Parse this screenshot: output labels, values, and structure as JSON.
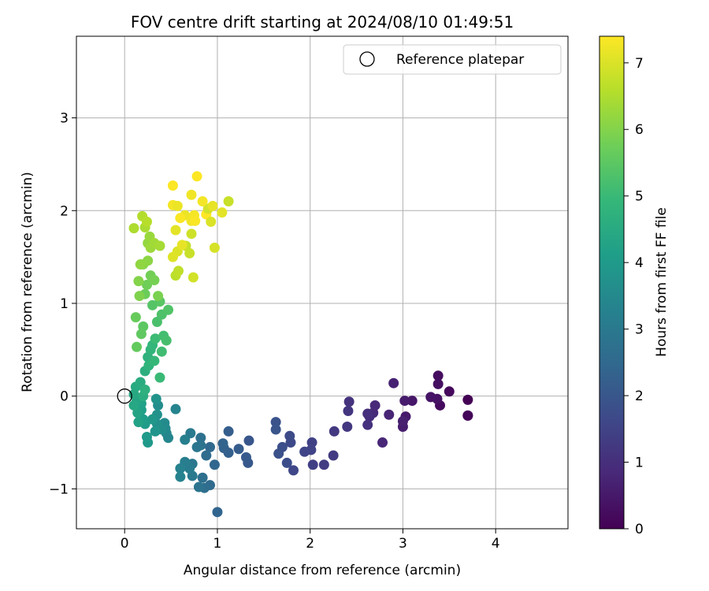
{
  "chart_data": {
    "type": "scatter",
    "title": "FOV centre drift starting at 2024/08/10 01:49:51",
    "xlabel": "Angular distance from reference (arcmin)",
    "ylabel": "Rotation from reference (arcmin)",
    "xlim": [
      -0.52,
      4.78
    ],
    "ylim": [
      -1.43,
      3.88
    ],
    "xticks": [
      0,
      1,
      2,
      3,
      4
    ],
    "yticks": [
      -1,
      0,
      1,
      2,
      3
    ],
    "grid": true,
    "legend": {
      "placement": "top-right",
      "entries": [
        "Reference platepar"
      ]
    },
    "reference_point": {
      "x": 0,
      "y": 0
    },
    "colorbar": {
      "label": "Hours from first FF file",
      "colormap": "viridis",
      "range": [
        0,
        7.4
      ],
      "ticks": [
        0,
        1,
        2,
        3,
        4,
        5,
        6,
        7
      ]
    },
    "points": [
      [
        3.7,
        -0.04,
        0.0
      ],
      [
        3.7,
        -0.21,
        0.05
      ],
      [
        3.7,
        -0.21,
        0.1
      ],
      [
        3.5,
        0.05,
        0.15
      ],
      [
        3.4,
        -0.1,
        0.2
      ],
      [
        3.38,
        0.22,
        0.25
      ],
      [
        3.38,
        0.13,
        0.3
      ],
      [
        3.37,
        -0.03,
        0.35
      ],
      [
        3.3,
        -0.01,
        0.4
      ],
      [
        3.1,
        -0.05,
        0.45
      ],
      [
        3.03,
        -0.22,
        0.5
      ],
      [
        3.02,
        -0.05,
        0.55
      ],
      [
        3.0,
        -0.33,
        0.6
      ],
      [
        3.0,
        -0.27,
        0.65
      ],
      [
        2.9,
        0.14,
        0.7
      ],
      [
        2.85,
        -0.2,
        0.75
      ],
      [
        2.78,
        -0.5,
        0.8
      ],
      [
        2.7,
        -0.1,
        0.85
      ],
      [
        2.68,
        -0.18,
        0.9
      ],
      [
        2.64,
        -0.22,
        0.95
      ],
      [
        2.62,
        -0.19,
        1.0
      ],
      [
        2.62,
        -0.31,
        1.05
      ],
      [
        2.42,
        -0.06,
        1.1
      ],
      [
        2.41,
        -0.16,
        1.15
      ],
      [
        2.4,
        -0.33,
        1.2
      ],
      [
        2.26,
        -0.38,
        1.25
      ],
      [
        2.25,
        -0.64,
        1.3
      ],
      [
        2.15,
        -0.74,
        1.35
      ],
      [
        2.03,
        -0.74,
        1.4
      ],
      [
        2.02,
        -0.5,
        1.45
      ],
      [
        2.01,
        -0.58,
        1.5
      ],
      [
        1.94,
        -0.6,
        1.55
      ],
      [
        1.82,
        -0.8,
        1.6
      ],
      [
        1.79,
        -0.5,
        1.65
      ],
      [
        1.78,
        -0.43,
        1.7
      ],
      [
        1.75,
        -0.72,
        1.75
      ],
      [
        1.7,
        -0.55,
        1.8
      ],
      [
        1.66,
        -0.62,
        1.85
      ],
      [
        1.63,
        -0.28,
        1.9
      ],
      [
        1.63,
        -0.36,
        1.95
      ],
      [
        1.34,
        -0.48,
        2.0
      ],
      [
        1.33,
        -0.72,
        2.05
      ],
      [
        1.31,
        -0.66,
        2.1
      ],
      [
        1.23,
        -0.57,
        2.15
      ],
      [
        1.12,
        -0.38,
        2.2
      ],
      [
        1.12,
        -0.61,
        2.25
      ],
      [
        1.07,
        -0.56,
        2.3
      ],
      [
        1.06,
        -0.51,
        2.35
      ],
      [
        1.0,
        -1.25,
        2.4
      ],
      [
        0.97,
        -0.74,
        2.45
      ],
      [
        0.92,
        -0.55,
        2.5
      ],
      [
        0.92,
        -0.96,
        2.55
      ],
      [
        0.88,
        -0.64,
        2.6
      ],
      [
        0.86,
        -0.99,
        2.65
      ],
      [
        0.84,
        -0.88,
        2.7
      ],
      [
        0.82,
        -0.45,
        2.75
      ],
      [
        0.82,
        -0.53,
        2.8
      ],
      [
        0.8,
        -0.98,
        2.85
      ],
      [
        0.78,
        -0.55,
        2.9
      ],
      [
        0.73,
        -0.73,
        2.95
      ],
      [
        0.73,
        -0.86,
        3.0
      ],
      [
        0.71,
        -0.4,
        3.05
      ],
      [
        0.7,
        -0.78,
        3.1
      ],
      [
        0.65,
        -0.71,
        3.15
      ],
      [
        0.65,
        -0.47,
        3.2
      ],
      [
        0.6,
        -0.78,
        3.25
      ],
      [
        0.6,
        -0.87,
        3.3
      ],
      [
        0.55,
        -0.14,
        3.35
      ],
      [
        0.47,
        -0.45,
        3.4
      ],
      [
        0.45,
        -0.4,
        3.45
      ],
      [
        0.44,
        -0.35,
        3.5
      ],
      [
        0.43,
        -0.29,
        3.55
      ],
      [
        0.4,
        -0.36,
        3.6
      ],
      [
        0.36,
        -0.1,
        3.65
      ],
      [
        0.35,
        -0.3,
        3.7
      ],
      [
        0.35,
        -0.2,
        3.75
      ],
      [
        0.34,
        -0.03,
        3.8
      ],
      [
        0.33,
        -0.38,
        3.85
      ],
      [
        0.3,
        -0.25,
        3.9
      ],
      [
        0.25,
        -0.5,
        3.95
      ],
      [
        0.24,
        -0.44,
        4.0
      ],
      [
        0.22,
        -0.3,
        4.05
      ],
      [
        0.2,
        -0.25,
        4.1
      ],
      [
        0.18,
        -0.15,
        4.15
      ],
      [
        0.18,
        -0.08,
        4.2
      ],
      [
        0.15,
        -0.28,
        4.25
      ],
      [
        0.14,
        -0.18,
        4.3
      ],
      [
        0.13,
        -0.05,
        4.35
      ],
      [
        0.1,
        -0.1,
        4.4
      ],
      [
        0.1,
        0.02,
        4.45
      ],
      [
        0.12,
        0.1,
        4.5
      ],
      [
        0.17,
        0.15,
        4.55
      ],
      [
        0.2,
        0.0,
        4.6
      ],
      [
        0.22,
        0.27,
        4.65
      ],
      [
        0.22,
        0.07,
        4.7
      ],
      [
        0.25,
        0.42,
        4.75
      ],
      [
        0.26,
        0.33,
        4.8
      ],
      [
        0.28,
        0.5,
        4.85
      ],
      [
        0.3,
        0.55,
        4.9
      ],
      [
        0.32,
        0.38,
        4.95
      ],
      [
        0.38,
        0.2,
        5.0
      ],
      [
        0.33,
        0.62,
        5.05
      ],
      [
        0.4,
        0.48,
        5.1
      ],
      [
        0.42,
        0.65,
        5.15
      ],
      [
        0.45,
        0.6,
        5.2
      ],
      [
        0.35,
        0.8,
        5.25
      ],
      [
        0.4,
        0.88,
        5.3
      ],
      [
        0.47,
        0.93,
        5.35
      ],
      [
        0.3,
        0.98,
        5.4
      ],
      [
        0.38,
        1.02,
        5.45
      ],
      [
        0.2,
        0.75,
        5.5
      ],
      [
        0.18,
        0.67,
        5.55
      ],
      [
        0.13,
        0.53,
        5.6
      ],
      [
        0.12,
        0.85,
        5.65
      ],
      [
        0.22,
        1.1,
        5.7
      ],
      [
        0.24,
        1.2,
        5.75
      ],
      [
        0.28,
        1.3,
        5.8
      ],
      [
        0.32,
        1.25,
        5.85
      ],
      [
        0.36,
        1.08,
        5.9
      ],
      [
        0.16,
        1.08,
        5.95
      ],
      [
        0.15,
        1.24,
        6.0
      ],
      [
        0.2,
        1.42,
        6.05
      ],
      [
        0.25,
        1.46,
        6.1
      ],
      [
        0.17,
        1.42,
        6.15
      ],
      [
        0.25,
        1.65,
        6.2
      ],
      [
        0.27,
        1.72,
        6.25
      ],
      [
        0.28,
        1.6,
        6.3
      ],
      [
        0.32,
        1.65,
        6.35
      ],
      [
        0.38,
        1.62,
        6.4
      ],
      [
        0.22,
        1.82,
        6.45
      ],
      [
        0.1,
        1.81,
        6.5
      ],
      [
        0.19,
        1.94,
        6.55
      ],
      [
        0.24,
        1.88,
        6.6
      ],
      [
        0.55,
        1.3,
        6.65
      ],
      [
        0.58,
        1.35,
        6.7
      ],
      [
        0.66,
        1.62,
        6.75
      ],
      [
        0.7,
        1.54,
        6.8
      ],
      [
        0.72,
        1.75,
        6.85
      ],
      [
        0.74,
        1.28,
        6.9
      ],
      [
        0.97,
        1.6,
        6.95
      ],
      [
        0.57,
        1.56,
        7.0
      ],
      [
        0.52,
        1.5,
        7.05
      ],
      [
        0.55,
        1.79,
        7.1
      ],
      [
        0.62,
        1.63,
        7.15
      ],
      [
        0.65,
        1.95,
        7.2
      ],
      [
        0.72,
        1.89,
        7.25
      ],
      [
        0.75,
        1.95,
        7.3
      ],
      [
        0.76,
        1.89,
        7.35
      ],
      [
        0.88,
        1.96,
        7.4
      ],
      [
        0.9,
        2.02,
        6.9
      ],
      [
        0.93,
        1.88,
        7.0
      ],
      [
        1.05,
        1.98,
        7.1
      ],
      [
        1.12,
        2.1,
        6.8
      ],
      [
        0.72,
        2.17,
        7.25
      ],
      [
        0.52,
        2.06,
        7.3
      ],
      [
        0.57,
        2.05,
        7.2
      ],
      [
        0.84,
        2.1,
        7.3
      ],
      [
        0.78,
        2.37,
        7.4
      ],
      [
        0.52,
        2.27,
        7.38
      ],
      [
        0.95,
        2.05,
        7.15
      ],
      [
        0.6,
        1.92,
        7.35
      ]
    ]
  }
}
